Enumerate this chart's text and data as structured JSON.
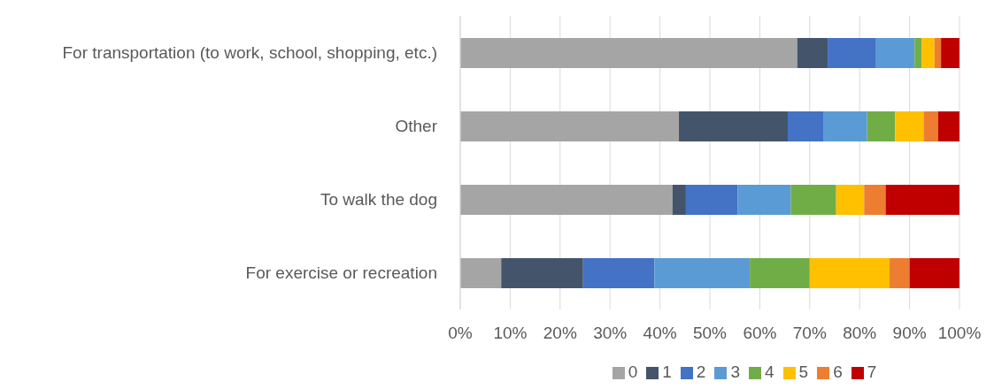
{
  "chart_data": {
    "type": "bar",
    "orientation": "horizontal",
    "stacked": true,
    "categories": [
      "For transportation (to work, school, shopping, etc.)",
      "Other",
      "To walk the dog",
      "For exercise or recreation"
    ],
    "series": [
      {
        "name": "0",
        "color": "#a5a5a5",
        "values": [
          67.5,
          43.8,
          42.5,
          8.2
        ]
      },
      {
        "name": "1",
        "color": "#44546a",
        "values": [
          6.1,
          21.8,
          2.7,
          16.4
        ]
      },
      {
        "name": "2",
        "color": "#4472c4",
        "values": [
          9.7,
          7.1,
          10.4,
          14.3
        ]
      },
      {
        "name": "3",
        "color": "#5b9bd5",
        "values": [
          7.7,
          8.8,
          10.6,
          19.1
        ]
      },
      {
        "name": "4",
        "color": "#70ad47",
        "values": [
          1.4,
          5.6,
          9.1,
          12.0
        ]
      },
      {
        "name": "5",
        "color": "#ffc000",
        "values": [
          2.6,
          5.7,
          5.6,
          16.0
        ]
      },
      {
        "name": "6",
        "color": "#ed7d31",
        "values": [
          1.3,
          2.9,
          4.3,
          4.0
        ]
      },
      {
        "name": "7",
        "color": "#c00000",
        "values": [
          3.7,
          4.3,
          14.8,
          10.0
        ]
      }
    ],
    "xlim": [
      0,
      100
    ],
    "xticks": [
      {
        "value": 0,
        "label": "0%"
      },
      {
        "value": 10,
        "label": "10%"
      },
      {
        "value": 20,
        "label": "20%"
      },
      {
        "value": 30,
        "label": "30%"
      },
      {
        "value": 40,
        "label": "40%"
      },
      {
        "value": 50,
        "label": "50%"
      },
      {
        "value": 60,
        "label": "60%"
      },
      {
        "value": 70,
        "label": "70%"
      },
      {
        "value": 80,
        "label": "80%"
      },
      {
        "value": 90,
        "label": "90%"
      },
      {
        "value": 100,
        "label": "100%"
      }
    ],
    "grid": "x",
    "legend": "bottom"
  }
}
